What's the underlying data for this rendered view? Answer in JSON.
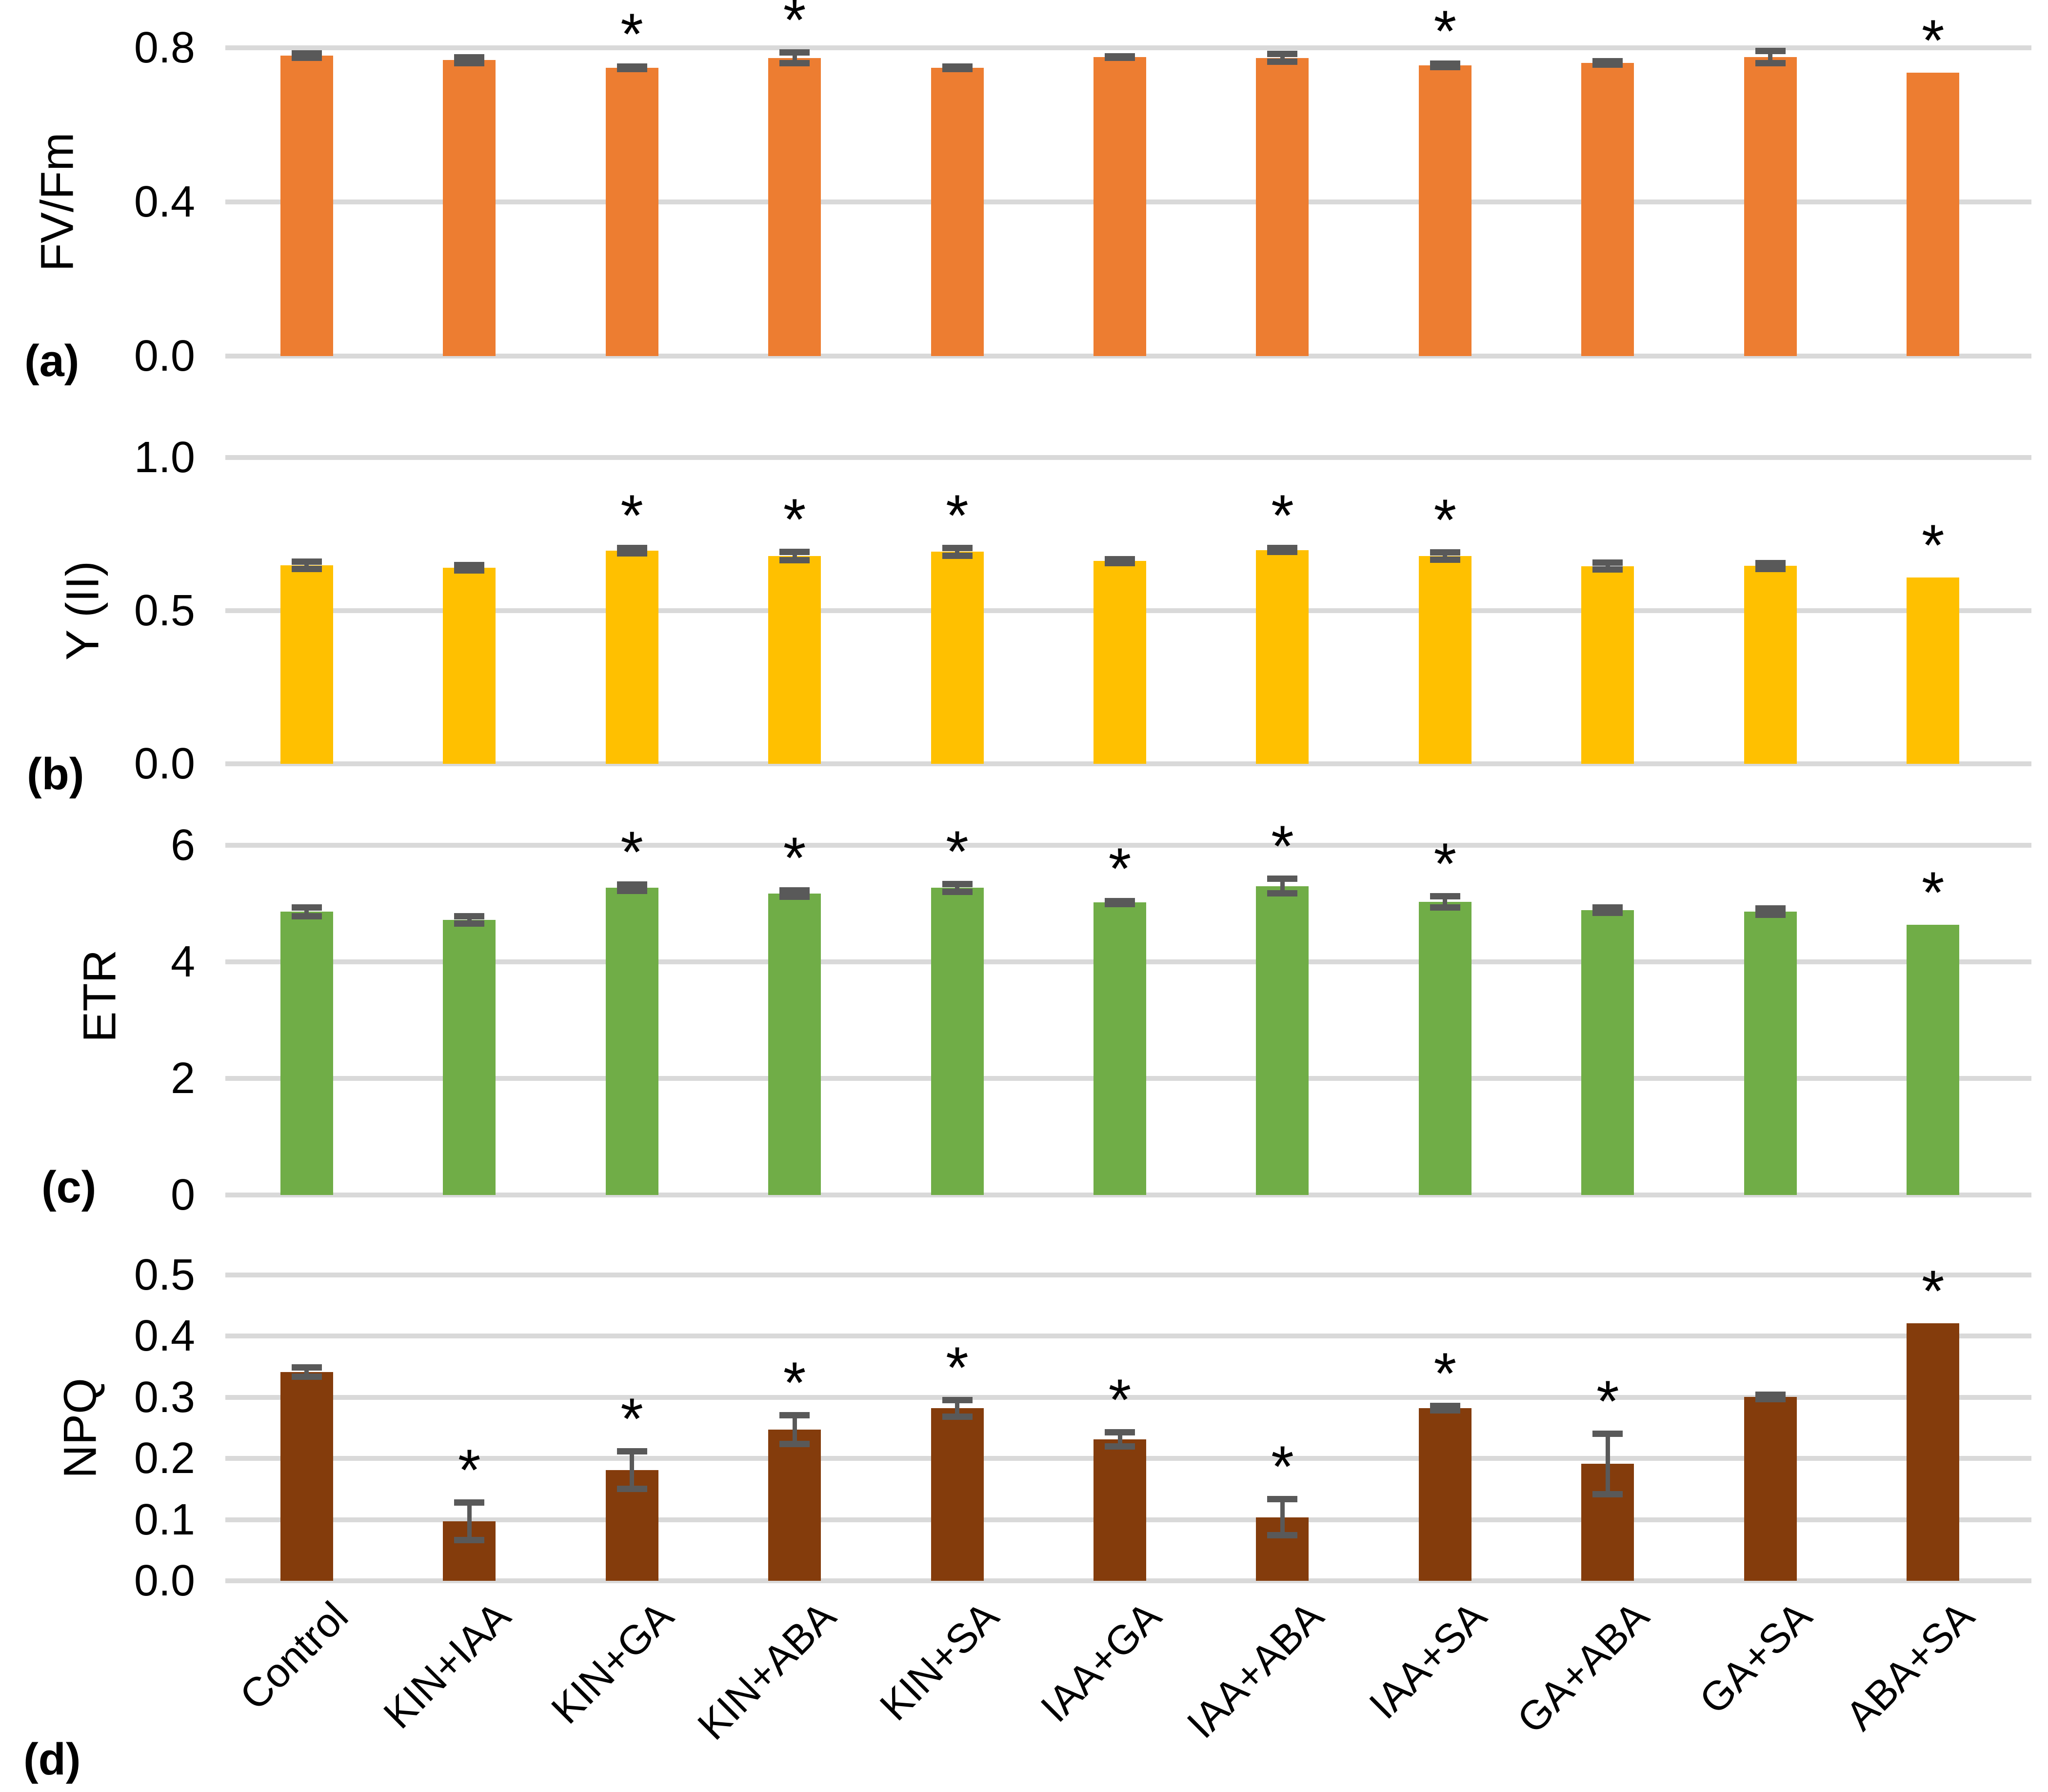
{
  "figure": {
    "description": "Four stacked bar-chart panels showing chlorophyll fluorescence parameters under hormone combination treatments",
    "significance_marker": "*",
    "colors": {
      "panel_a_bars": "#ED7D31",
      "panel_b_bars": "#FFC000",
      "panel_c_bars": "#70AD47",
      "panel_d_bars": "#843C0C",
      "gridline": "#D9D9D9",
      "error_bar": "#595959",
      "text": "#000000"
    }
  },
  "chart_data": [
    {
      "type": "bar",
      "panel_label": "(a)",
      "ylabel": "FV/Fm",
      "ylim": [
        0,
        0.8
      ],
      "yticks": [
        0,
        0.4,
        0.8
      ],
      "ytick_labels": [
        "0.0",
        "0.4",
        "0.8"
      ],
      "grid": true,
      "legend": "none",
      "bar_color": "#ED7D31",
      "categories": [
        "Control",
        "KIN+IAA",
        "KIN+GA",
        "KIN+ABA",
        "KIN+SA",
        "IAA+GA",
        "IAA+ABA",
        "IAA+SA",
        "GA+ABA",
        "GA+SA",
        "ABA+SA"
      ],
      "values": [
        0.78,
        0.768,
        0.748,
        0.774,
        0.748,
        0.776,
        0.774,
        0.755,
        0.761,
        0.776,
        0.736
      ],
      "errors": [
        0.006,
        0.008,
        0.004,
        0.015,
        0.004,
        0.003,
        0.011,
        0.005,
        0.005,
        0.017,
        0
      ],
      "significant": [
        false,
        false,
        true,
        true,
        false,
        false,
        false,
        true,
        false,
        false,
        true
      ]
    },
    {
      "type": "bar",
      "panel_label": "(b)",
      "ylabel": "Y (II)",
      "ylim": [
        0,
        1.0
      ],
      "yticks": [
        0,
        0.5,
        1.0
      ],
      "ytick_labels": [
        "0.0",
        "0.5",
        "1.0"
      ],
      "grid": true,
      "legend": "none",
      "bar_color": "#FFC000",
      "categories": [
        "Control",
        "KIN+IAA",
        "KIN+GA",
        "KIN+ABA",
        "KIN+SA",
        "IAA+GA",
        "IAA+ABA",
        "IAA+SA",
        "GA+ABA",
        "GA+SA",
        "ABA+SA"
      ],
      "values": [
        0.648,
        0.64,
        0.696,
        0.678,
        0.692,
        0.662,
        0.698,
        0.678,
        0.645,
        0.646,
        0.608
      ],
      "errors": [
        0.013,
        0.01,
        0.009,
        0.014,
        0.013,
        0.007,
        0.007,
        0.013,
        0.012,
        0.01,
        0
      ],
      "significant": [
        false,
        false,
        true,
        true,
        true,
        false,
        true,
        true,
        false,
        false,
        true
      ]
    },
    {
      "type": "bar",
      "panel_label": "(c)",
      "ylabel": "ETR",
      "ylim": [
        0,
        6
      ],
      "yticks": [
        0,
        2,
        4,
        6
      ],
      "ytick_labels": [
        "0",
        "2",
        "4",
        "6"
      ],
      "grid": true,
      "legend": "none",
      "bar_color": "#70AD47",
      "categories": [
        "Control",
        "KIN+IAA",
        "KIN+GA",
        "KIN+ABA",
        "KIN+SA",
        "IAA+GA",
        "IAA+ABA",
        "IAA+SA",
        "GA+ABA",
        "GA+SA",
        "ABA+SA"
      ],
      "values": [
        4.86,
        4.72,
        5.27,
        5.17,
        5.27,
        5.02,
        5.3,
        5.03,
        4.89,
        4.86,
        4.64
      ],
      "errors": [
        0.08,
        0.07,
        0.06,
        0.06,
        0.07,
        0.03,
        0.13,
        0.1,
        0.05,
        0.06,
        0
      ],
      "significant": [
        false,
        false,
        true,
        true,
        true,
        true,
        true,
        true,
        false,
        false,
        true
      ]
    },
    {
      "type": "bar",
      "panel_label": "(d)",
      "ylabel": "NPQ",
      "ylim": [
        0,
        0.5
      ],
      "yticks": [
        0,
        0.1,
        0.2,
        0.3,
        0.4,
        0.5
      ],
      "ytick_labels": [
        "0.0",
        "0.1",
        "0.2",
        "0.3",
        "0.4",
        "0.5"
      ],
      "grid": true,
      "legend": "none",
      "bar_color": "#843C0C",
      "categories": [
        "Control",
        "KIN+IAA",
        "KIN+GA",
        "KIN+ABA",
        "KIN+SA",
        "IAA+GA",
        "IAA+ABA",
        "IAA+SA",
        "GA+ABA",
        "GA+SA",
        "ABA+SA"
      ],
      "values": [
        0.341,
        0.097,
        0.181,
        0.247,
        0.282,
        0.231,
        0.104,
        0.282,
        0.191,
        0.301,
        0.421
      ],
      "errors": [
        0.008,
        0.031,
        0.031,
        0.024,
        0.014,
        0.012,
        0.03,
        0.004,
        0.05,
        0.004,
        0
      ],
      "significant": [
        false,
        true,
        true,
        true,
        true,
        true,
        true,
        true,
        true,
        false,
        true
      ]
    }
  ]
}
